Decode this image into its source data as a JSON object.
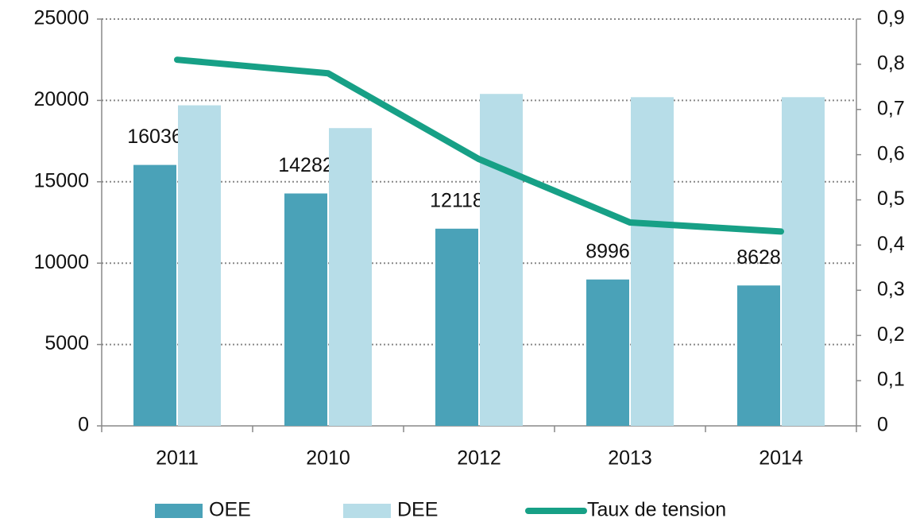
{
  "chart_data": {
    "type": "bar",
    "categories": [
      "2011",
      "2010",
      "2012",
      "2013",
      "2014"
    ],
    "series": [
      {
        "name": "OEE",
        "type": "bar",
        "color": "#4aa2b8",
        "values": [
          16036,
          14282,
          12118,
          8996,
          8628
        ],
        "data_labels": true
      },
      {
        "name": "DEE",
        "type": "bar",
        "color": "#b7dde8",
        "values": [
          19700,
          18300,
          20400,
          20200,
          20200
        ]
      },
      {
        "name": "Taux de tension",
        "type": "line",
        "axis": "y2",
        "color": "#17a086",
        "values": [
          0.81,
          0.78,
          0.59,
          0.45,
          0.43
        ]
      }
    ],
    "ylim": [
      0,
      25000
    ],
    "yticks": [
      0,
      5000,
      10000,
      15000,
      20000,
      25000
    ],
    "y2lim": [
      0,
      0.9
    ],
    "y2ticks": [
      0,
      {
        "value": 0.1,
        "label": "0,1"
      },
      {
        "value": 0.2,
        "label": "0,2"
      },
      {
        "value": 0.3,
        "label": "0,3"
      },
      {
        "value": 0.4,
        "label": "0,4"
      },
      {
        "value": 0.5,
        "label": "0,5"
      },
      {
        "value": 0.6,
        "label": "0,6"
      },
      {
        "value": 0.7,
        "label": "0,7"
      },
      {
        "value": 0.8,
        "label": "0,8"
      },
      {
        "value": 0.9,
        "label": "0,9"
      }
    ],
    "grid": true,
    "legend": "bottom"
  }
}
